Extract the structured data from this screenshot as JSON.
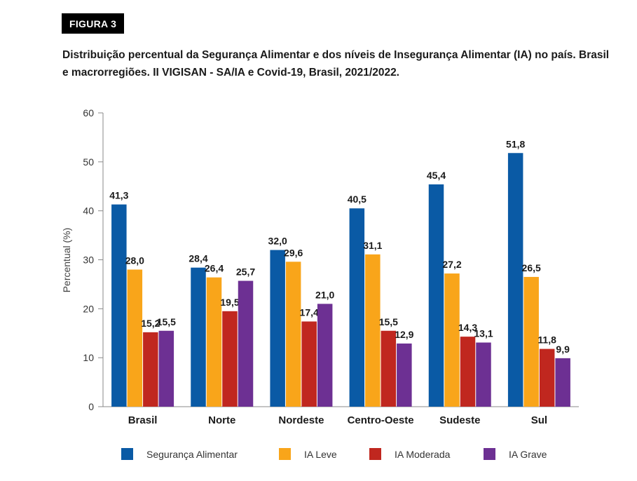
{
  "figure_label": "FIGURA 3",
  "title": "Distribuição percentual da Segurança Alimentar e dos níveis de Insegurança Alimentar (IA) no país. Brasil e macrorregiões. II VIGISAN - SA/IA e Covid-19, Brasil, 2021/2022.",
  "chart_data": {
    "type": "bar",
    "ylabel": "Percentual (%)",
    "xlabel": "",
    "ylim": [
      0,
      60
    ],
    "yticks": [
      0,
      10,
      20,
      30,
      40,
      50,
      60
    ],
    "grid": false,
    "legend_position": "bottom",
    "categories": [
      "Brasil",
      "Norte",
      "Nordeste",
      "Centro-Oeste",
      "Sudeste",
      "Sul"
    ],
    "series": [
      {
        "name": "Segurança Alimentar",
        "color": "#0a5aa5",
        "values": [
          41.3,
          28.4,
          32.0,
          40.5,
          45.4,
          51.8
        ],
        "labels": [
          "41,3",
          "28,4",
          "32,0",
          "40,5",
          "45,4",
          "51,8"
        ]
      },
      {
        "name": "IA Leve",
        "color": "#f9a51a",
        "values": [
          28.0,
          26.4,
          29.6,
          31.1,
          27.2,
          26.5
        ],
        "labels": [
          "28,0",
          "26,4",
          "29,6",
          "31,1",
          "27,2",
          "26,5"
        ]
      },
      {
        "name": "IA Moderada",
        "color": "#c0271f",
        "values": [
          15.2,
          19.5,
          17.4,
          15.5,
          14.3,
          11.8
        ],
        "labels": [
          "15,2",
          "19,5",
          "17,4",
          "15,5",
          "14,3",
          "11,8"
        ]
      },
      {
        "name": "IA Grave",
        "color": "#6d3093",
        "values": [
          15.5,
          25.7,
          21.0,
          12.9,
          13.1,
          9.9
        ],
        "labels": [
          "15,5",
          "25,7",
          "21,0",
          "12,9",
          "13,1",
          "9,9"
        ]
      }
    ]
  }
}
